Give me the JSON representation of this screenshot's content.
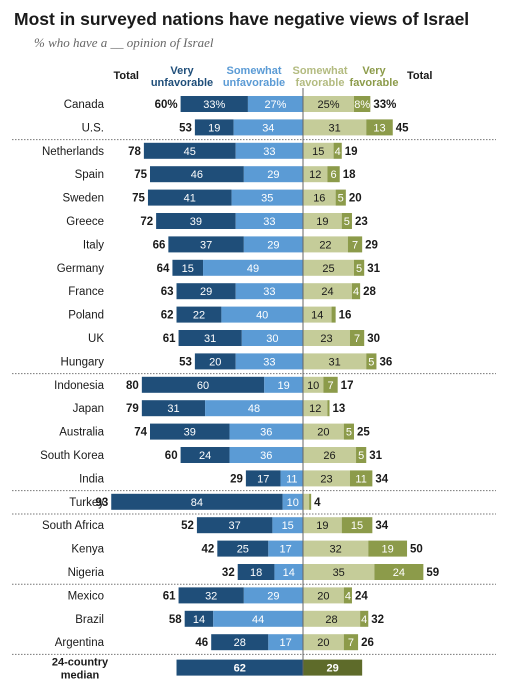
{
  "title": "Most in surveyed nations have negative views of Israel",
  "subtitle": "% who have a __ opinion of Israel",
  "chart_data": {
    "type": "bar",
    "title": "Most in surveyed nations have negative views of Israel",
    "subtitle": "% who have a __ opinion of Israel",
    "column_headers": {
      "total_left": "Total",
      "very_unfavorable": [
        "Very",
        "unfavorable"
      ],
      "somewhat_unfavorable": [
        "Somewhat",
        "unfavorable"
      ],
      "somewhat_favorable": [
        "Somewhat",
        "favorable"
      ],
      "very_favorable": [
        "Very",
        "favorable"
      ],
      "total_right": "Total"
    },
    "series": [
      {
        "name": "Very unfavorable",
        "color": "#1f4e79"
      },
      {
        "name": "Somewhat unfavorable",
        "color": "#5b9bd5"
      },
      {
        "name": "Somewhat favorable",
        "color": "#c5cc99"
      },
      {
        "name": "Very favorable",
        "color": "#8c9b4a"
      }
    ],
    "groups": [
      [
        {
          "country": "Canada",
          "vu": 33,
          "su": 27,
          "sf": 25,
          "vf": 8,
          "unfav_total": 60,
          "fav_total": 33,
          "show_percent": true
        },
        {
          "country": "U.S.",
          "vu": 19,
          "su": 34,
          "sf": 31,
          "vf": 13,
          "unfav_total": 53,
          "fav_total": 45
        }
      ],
      [
        {
          "country": "Netherlands",
          "vu": 45,
          "su": 33,
          "sf": 15,
          "vf": 4,
          "unfav_total": 78,
          "fav_total": 19
        },
        {
          "country": "Spain",
          "vu": 46,
          "su": 29,
          "sf": 12,
          "vf": 6,
          "unfav_total": 75,
          "fav_total": 18
        },
        {
          "country": "Sweden",
          "vu": 41,
          "su": 35,
          "sf": 16,
          "vf": 5,
          "unfav_total": 75,
          "fav_total": 20
        },
        {
          "country": "Greece",
          "vu": 39,
          "su": 33,
          "sf": 19,
          "vf": 5,
          "unfav_total": 72,
          "fav_total": 23
        },
        {
          "country": "Italy",
          "vu": 37,
          "su": 29,
          "sf": 22,
          "vf": 7,
          "unfav_total": 66,
          "fav_total": 29
        },
        {
          "country": "Germany",
          "vu": 15,
          "su": 49,
          "sf": 25,
          "vf": 5,
          "unfav_total": 64,
          "fav_total": 31
        },
        {
          "country": "France",
          "vu": 29,
          "su": 33,
          "sf": 24,
          "vf": 4,
          "unfav_total": 63,
          "fav_total": 28
        },
        {
          "country": "Poland",
          "vu": 22,
          "su": 40,
          "sf": 14,
          "vf": 2,
          "unfav_total": 62,
          "fav_total": 16
        },
        {
          "country": "UK",
          "vu": 31,
          "su": 30,
          "sf": 23,
          "vf": 7,
          "unfav_total": 61,
          "fav_total": 30
        },
        {
          "country": "Hungary",
          "vu": 20,
          "su": 33,
          "sf": 31,
          "vf": 5,
          "unfav_total": 53,
          "fav_total": 36
        }
      ],
      [
        {
          "country": "Indonesia",
          "vu": 60,
          "su": 19,
          "sf": 10,
          "vf": 7,
          "unfav_total": 80,
          "fav_total": 17
        },
        {
          "country": "Japan",
          "vu": 31,
          "su": 48,
          "sf": 12,
          "vf": 1,
          "unfav_total": 79,
          "fav_total": 13
        },
        {
          "country": "Australia",
          "vu": 39,
          "su": 36,
          "sf": 20,
          "vf": 5,
          "unfav_total": 74,
          "fav_total": 25
        },
        {
          "country": "South Korea",
          "vu": 24,
          "su": 36,
          "sf": 26,
          "vf": 5,
          "unfav_total": 60,
          "fav_total": 31
        },
        {
          "country": "India",
          "vu": 17,
          "su": 11,
          "sf": 23,
          "vf": 11,
          "unfav_total": 29,
          "fav_total": 34
        }
      ],
      [
        {
          "country": "Turkey",
          "vu": 84,
          "su": 10,
          "sf": 3,
          "vf": 1,
          "unfav_total": 93,
          "fav_total": 4
        }
      ],
      [
        {
          "country": "South Africa",
          "vu": 37,
          "su": 15,
          "sf": 19,
          "vf": 15,
          "unfav_total": 52,
          "fav_total": 34
        },
        {
          "country": "Kenya",
          "vu": 25,
          "su": 17,
          "sf": 32,
          "vf": 19,
          "unfav_total": 42,
          "fav_total": 50
        },
        {
          "country": "Nigeria",
          "vu": 18,
          "su": 14,
          "sf": 35,
          "vf": 24,
          "unfav_total": 32,
          "fav_total": 59
        }
      ],
      [
        {
          "country": "Mexico",
          "vu": 32,
          "su": 29,
          "sf": 20,
          "vf": 4,
          "unfav_total": 61,
          "fav_total": 24
        },
        {
          "country": "Brazil",
          "vu": 14,
          "su": 44,
          "sf": 28,
          "vf": 4,
          "unfav_total": 58,
          "fav_total": 32
        },
        {
          "country": "Argentina",
          "vu": 28,
          "su": 17,
          "sf": 20,
          "vf": 7,
          "unfav_total": 46,
          "fav_total": 26
        }
      ]
    ],
    "median": {
      "label": [
        "24-country",
        "median"
      ],
      "unfav": 62,
      "fav": 29
    }
  }
}
